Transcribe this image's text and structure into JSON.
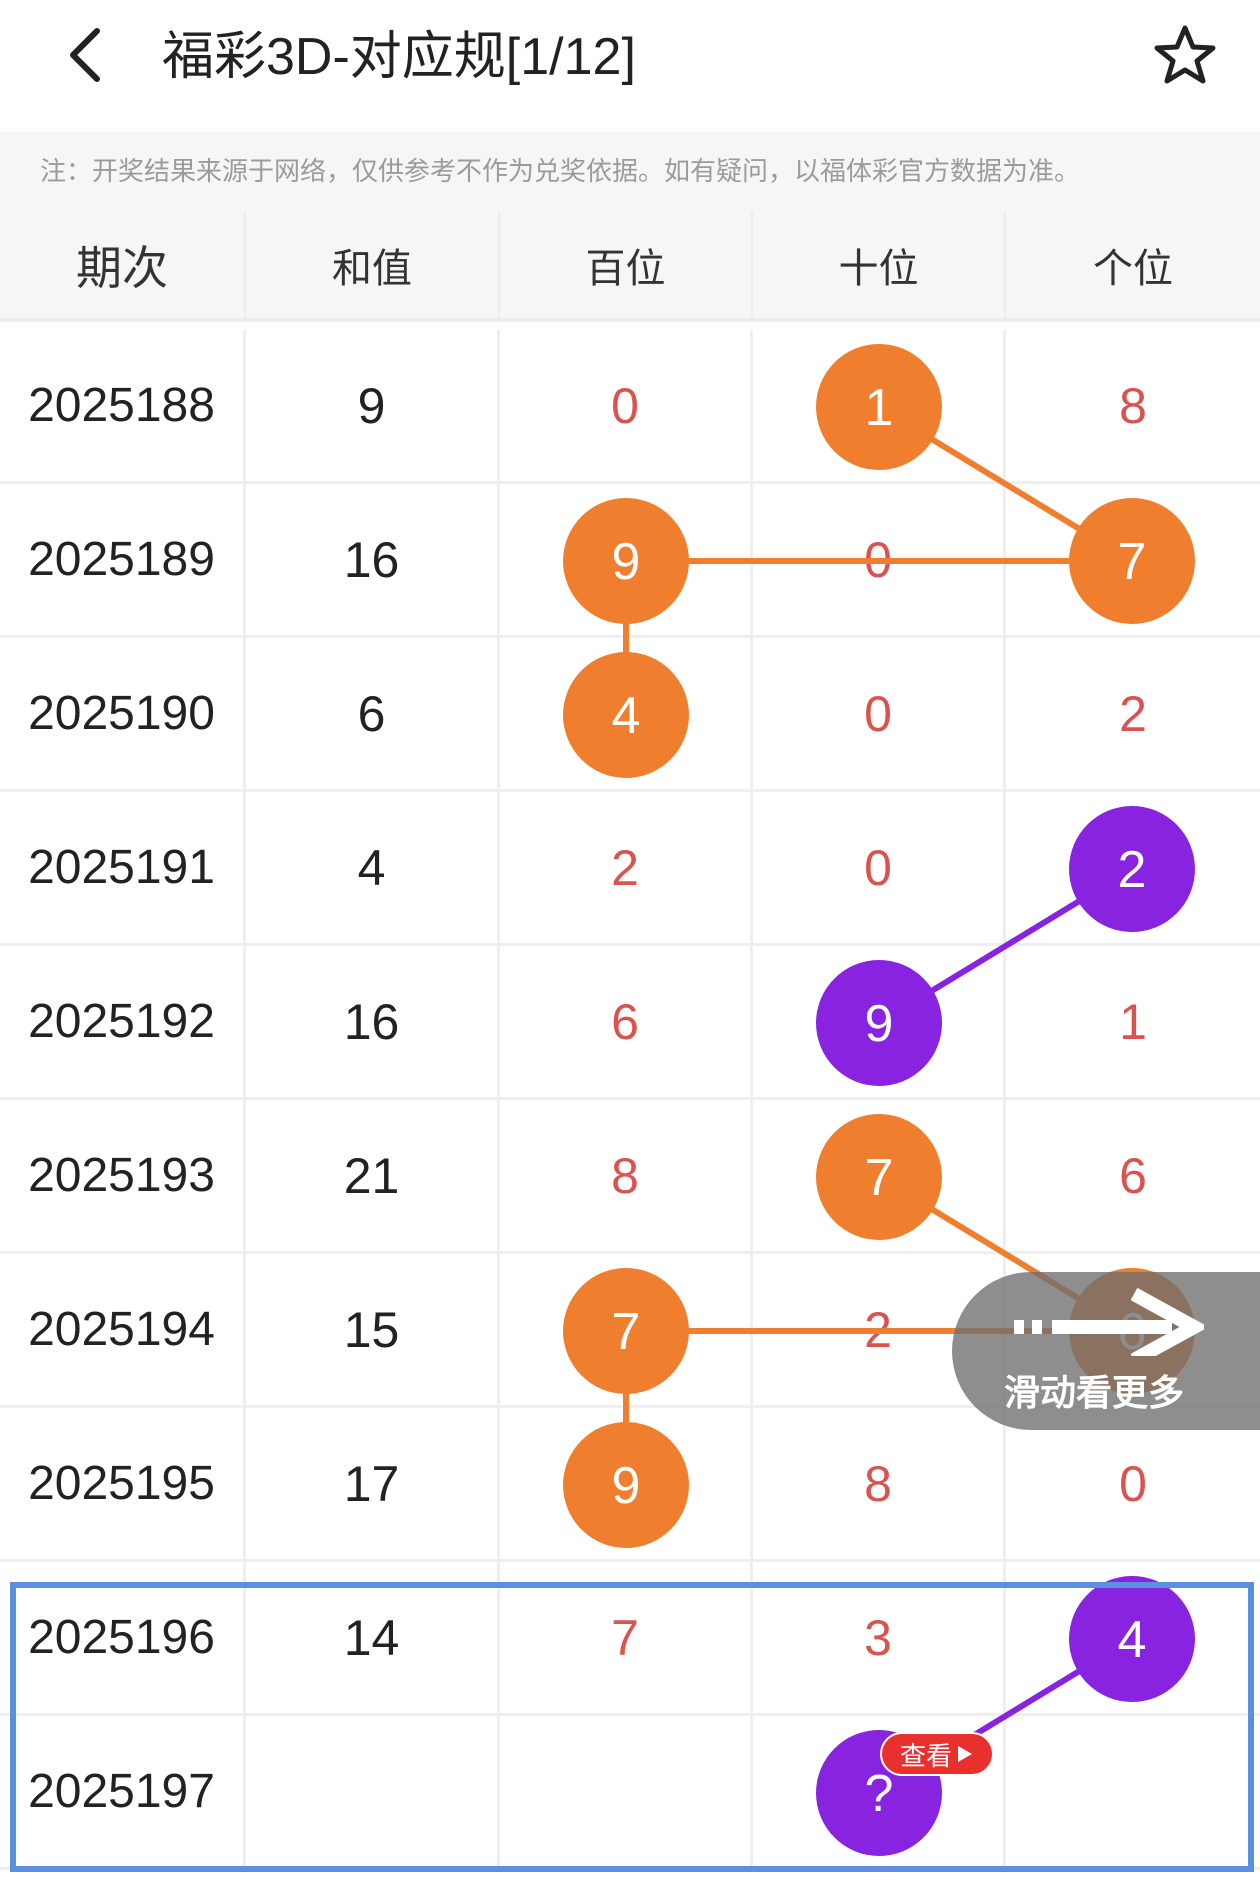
{
  "header": {
    "title": "福彩3D-对应规[1/12]",
    "back_icon": "chevron-left-icon",
    "favorite_icon": "star-outline-icon"
  },
  "notice": "注：开奖结果来源于网络，仅供参考不作为兑奖依据。如有疑问，以福体彩官方数据为准。",
  "table": {
    "columns": [
      "期次",
      "和值",
      "百位",
      "十位",
      "个位"
    ],
    "rows": [
      {
        "issue": "2025188",
        "sum": "9",
        "hundreds": "0",
        "tens": "1",
        "ones": "8"
      },
      {
        "issue": "2025189",
        "sum": "16",
        "hundreds": "9",
        "tens": "0",
        "ones": "7"
      },
      {
        "issue": "2025190",
        "sum": "6",
        "hundreds": "4",
        "tens": "0",
        "ones": "2"
      },
      {
        "issue": "2025191",
        "sum": "4",
        "hundreds": "2",
        "tens": "0",
        "ones": "2"
      },
      {
        "issue": "2025192",
        "sum": "16",
        "hundreds": "6",
        "tens": "9",
        "ones": "1"
      },
      {
        "issue": "2025193",
        "sum": "21",
        "hundreds": "8",
        "tens": "7",
        "ones": "6"
      },
      {
        "issue": "2025194",
        "sum": "15",
        "hundreds": "7",
        "tens": "2",
        "ones": "6"
      },
      {
        "issue": "2025195",
        "sum": "17",
        "hundreds": "9",
        "tens": "8",
        "ones": "0"
      },
      {
        "issue": "2025196",
        "sum": "14",
        "hundreds": "7",
        "tens": "3",
        "ones": "4"
      },
      {
        "issue": "2025197",
        "sum": "",
        "hundreds": "",
        "tens": "?",
        "ones": ""
      }
    ]
  },
  "colors": {
    "orange": "#ef7f2f",
    "purple": "#8823e0",
    "red_number": "#d9534f",
    "selection": "#5b8fe0"
  },
  "swipe_hint": "滑动看更多",
  "view_badge": "查看"
}
